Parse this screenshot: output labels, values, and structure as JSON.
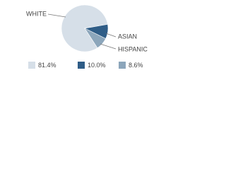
{
  "chart_data": {
    "type": "pie",
    "categories": [
      "WHITE",
      "ASIAN",
      "HISPANIC"
    ],
    "values": [
      81.4,
      10.0,
      8.6
    ],
    "value_labels": [
      "81.4%",
      "10.0%",
      "8.6%"
    ],
    "colors": [
      "#d6dfe8",
      "#2f5d87",
      "#8ca6bb"
    ]
  }
}
